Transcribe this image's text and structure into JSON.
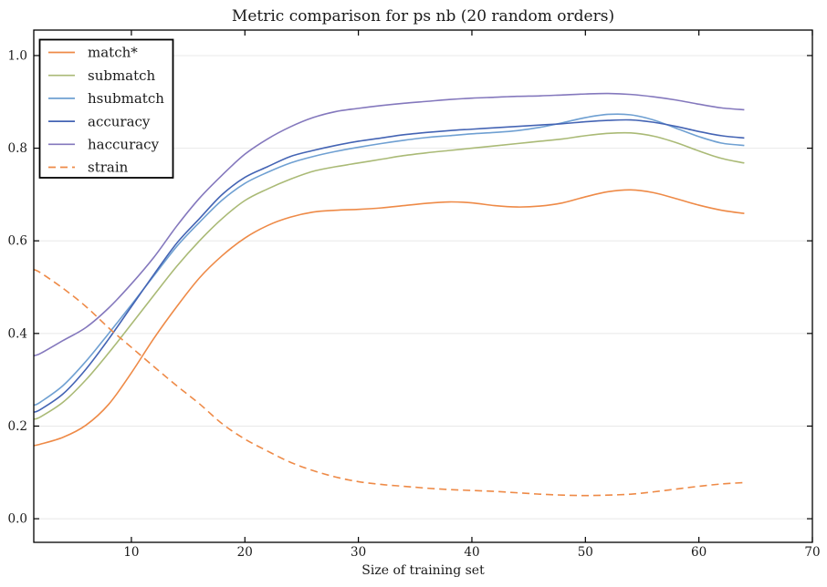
{
  "chart_data": {
    "type": "line",
    "title": "Metric comparison for ps nb (20 random orders)",
    "xlabel": "Size of training set",
    "ylabel": "",
    "xlim": [
      1.4,
      70
    ],
    "ylim": [
      -0.051,
      1.055
    ],
    "xticks": [
      10,
      20,
      30,
      40,
      50,
      60,
      70
    ],
    "yticks": [
      0.0,
      0.2,
      0.4,
      0.6,
      0.8,
      1.0
    ],
    "ytick_labels": [
      "0.0",
      "0.2",
      "0.4",
      "0.6",
      "0.8",
      "1.0"
    ],
    "grid": "horizontal-only",
    "grid_color": "#e8e8e8",
    "axis_color": "#000000",
    "legend_position": "upper left",
    "x": [
      1.4,
      2,
      4,
      6,
      8,
      10,
      12,
      14,
      16,
      18,
      20,
      22,
      24,
      26,
      28,
      30,
      32,
      34,
      36,
      38,
      40,
      42,
      44,
      46,
      48,
      50,
      52,
      54,
      56,
      58,
      60,
      62,
      64
    ],
    "series": [
      {
        "name": "match*",
        "color": "#ee8a47",
        "style": "solid",
        "values": [
          0.158,
          0.161,
          0.176,
          0.202,
          0.247,
          0.315,
          0.39,
          0.458,
          0.52,
          0.568,
          0.606,
          0.633,
          0.651,
          0.662,
          0.666,
          0.668,
          0.671,
          0.676,
          0.681,
          0.684,
          0.682,
          0.676,
          0.673,
          0.675,
          0.682,
          0.695,
          0.706,
          0.71,
          0.704,
          0.691,
          0.677,
          0.666,
          0.659
        ]
      },
      {
        "name": "submatch",
        "color": "#aaba76",
        "style": "solid",
        "values": [
          0.215,
          0.22,
          0.252,
          0.3,
          0.358,
          0.42,
          0.483,
          0.545,
          0.6,
          0.648,
          0.687,
          0.712,
          0.733,
          0.75,
          0.76,
          0.768,
          0.776,
          0.784,
          0.79,
          0.795,
          0.8,
          0.805,
          0.81,
          0.815,
          0.82,
          0.827,
          0.832,
          0.833,
          0.826,
          0.812,
          0.794,
          0.778,
          0.768
        ]
      },
      {
        "name": "hsubmatch",
        "color": "#6fa0d2",
        "style": "solid",
        "values": [
          0.245,
          0.252,
          0.288,
          0.34,
          0.4,
          0.462,
          0.525,
          0.588,
          0.64,
          0.688,
          0.724,
          0.748,
          0.768,
          0.782,
          0.793,
          0.802,
          0.81,
          0.817,
          0.823,
          0.827,
          0.831,
          0.834,
          0.838,
          0.845,
          0.855,
          0.866,
          0.873,
          0.872,
          0.861,
          0.843,
          0.825,
          0.811,
          0.806
        ]
      },
      {
        "name": "accuracy",
        "color": "#4464b4",
        "style": "solid",
        "values": [
          0.23,
          0.236,
          0.27,
          0.323,
          0.388,
          0.458,
          0.528,
          0.595,
          0.648,
          0.7,
          0.737,
          0.76,
          0.782,
          0.795,
          0.806,
          0.815,
          0.822,
          0.829,
          0.834,
          0.838,
          0.841,
          0.844,
          0.847,
          0.85,
          0.853,
          0.857,
          0.86,
          0.861,
          0.856,
          0.847,
          0.836,
          0.827,
          0.822
        ]
      },
      {
        "name": "haccuracy",
        "color": "#8478bd",
        "style": "solid",
        "values": [
          0.352,
          0.357,
          0.385,
          0.413,
          0.455,
          0.507,
          0.565,
          0.632,
          0.692,
          0.742,
          0.787,
          0.82,
          0.846,
          0.866,
          0.879,
          0.886,
          0.892,
          0.897,
          0.901,
          0.905,
          0.908,
          0.91,
          0.912,
          0.913,
          0.915,
          0.917,
          0.918,
          0.916,
          0.911,
          0.904,
          0.895,
          0.887,
          0.883
        ]
      },
      {
        "name": "strain",
        "color": "#ee8a47",
        "style": "dashed",
        "values": [
          0.538,
          0.531,
          0.497,
          0.458,
          0.412,
          0.37,
          0.328,
          0.287,
          0.248,
          0.205,
          0.172,
          0.146,
          0.122,
          0.104,
          0.09,
          0.08,
          0.074,
          0.07,
          0.066,
          0.063,
          0.061,
          0.059,
          0.056,
          0.053,
          0.051,
          0.05,
          0.051,
          0.053,
          0.058,
          0.064,
          0.07,
          0.075,
          0.078
        ]
      }
    ]
  }
}
